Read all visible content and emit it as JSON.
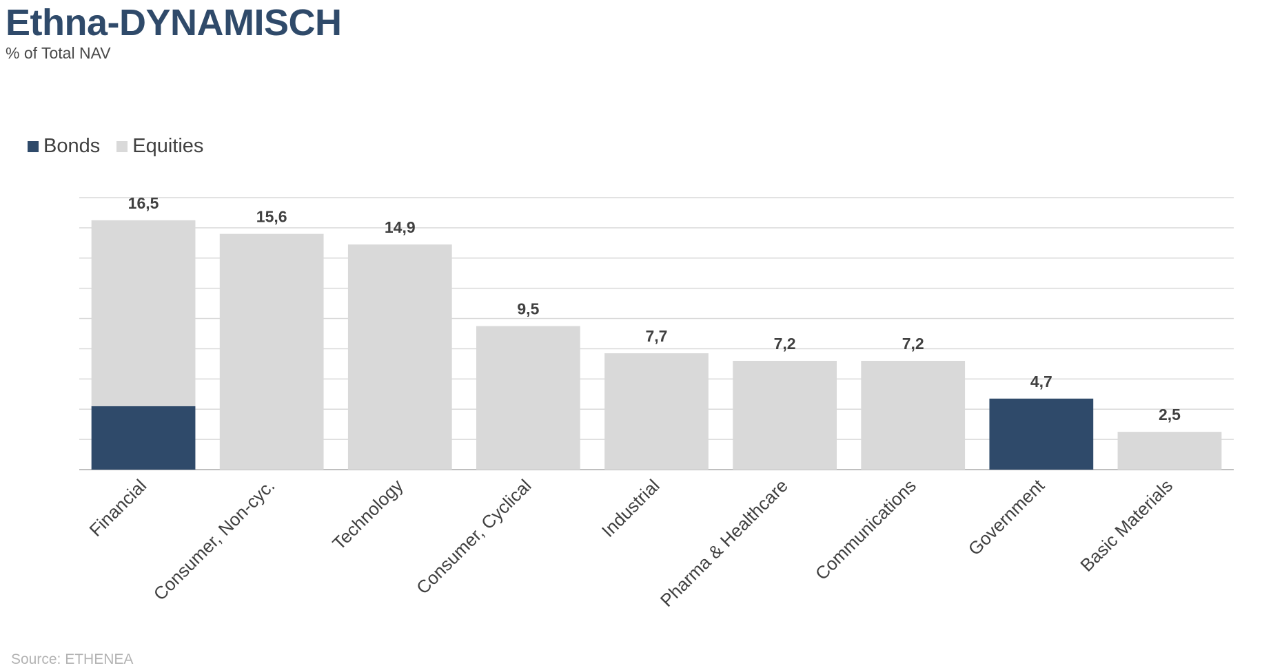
{
  "header": {
    "title": "Ethna-DYNAMISCH",
    "subtitle": "% of Total NAV"
  },
  "footer": {
    "source": "Source: ETHENEA"
  },
  "colors": {
    "bonds": "#2f4a6a",
    "equities": "#d9d9d9",
    "grid": "#d9d9d9",
    "axis": "#bfbfbf"
  },
  "chart_data": {
    "type": "bar",
    "stacked": true,
    "categories": [
      "Financial",
      "Consumer, Non-cyc.",
      "Technology",
      "Consumer, Cyclical",
      "Industrial",
      "Pharma & Healthcare",
      "Communications",
      "Government",
      "Basic Materials"
    ],
    "series": [
      {
        "name": "Bonds",
        "values": [
          4.2,
          0,
          0,
          0,
          0,
          0,
          0,
          4.7,
          0
        ]
      },
      {
        "name": "Equities",
        "values": [
          12.3,
          15.6,
          14.9,
          9.5,
          7.7,
          7.2,
          7.2,
          0,
          2.5
        ]
      }
    ],
    "total_labels": [
      "16,5",
      "15,6",
      "14,9",
      "9,5",
      "7,7",
      "7,2",
      "7,2",
      "4,7",
      "2,5"
    ],
    "totals": [
      16.5,
      15.6,
      14.9,
      9.5,
      7.7,
      7.2,
      7.2,
      4.7,
      2.5
    ],
    "ylim": [
      0,
      18
    ],
    "grid_step": 2,
    "grid": true,
    "legend_position": "top-left",
    "title": "Ethna-DYNAMISCH",
    "subtitle": "% of Total NAV",
    "xlabel": "",
    "ylabel": ""
  }
}
